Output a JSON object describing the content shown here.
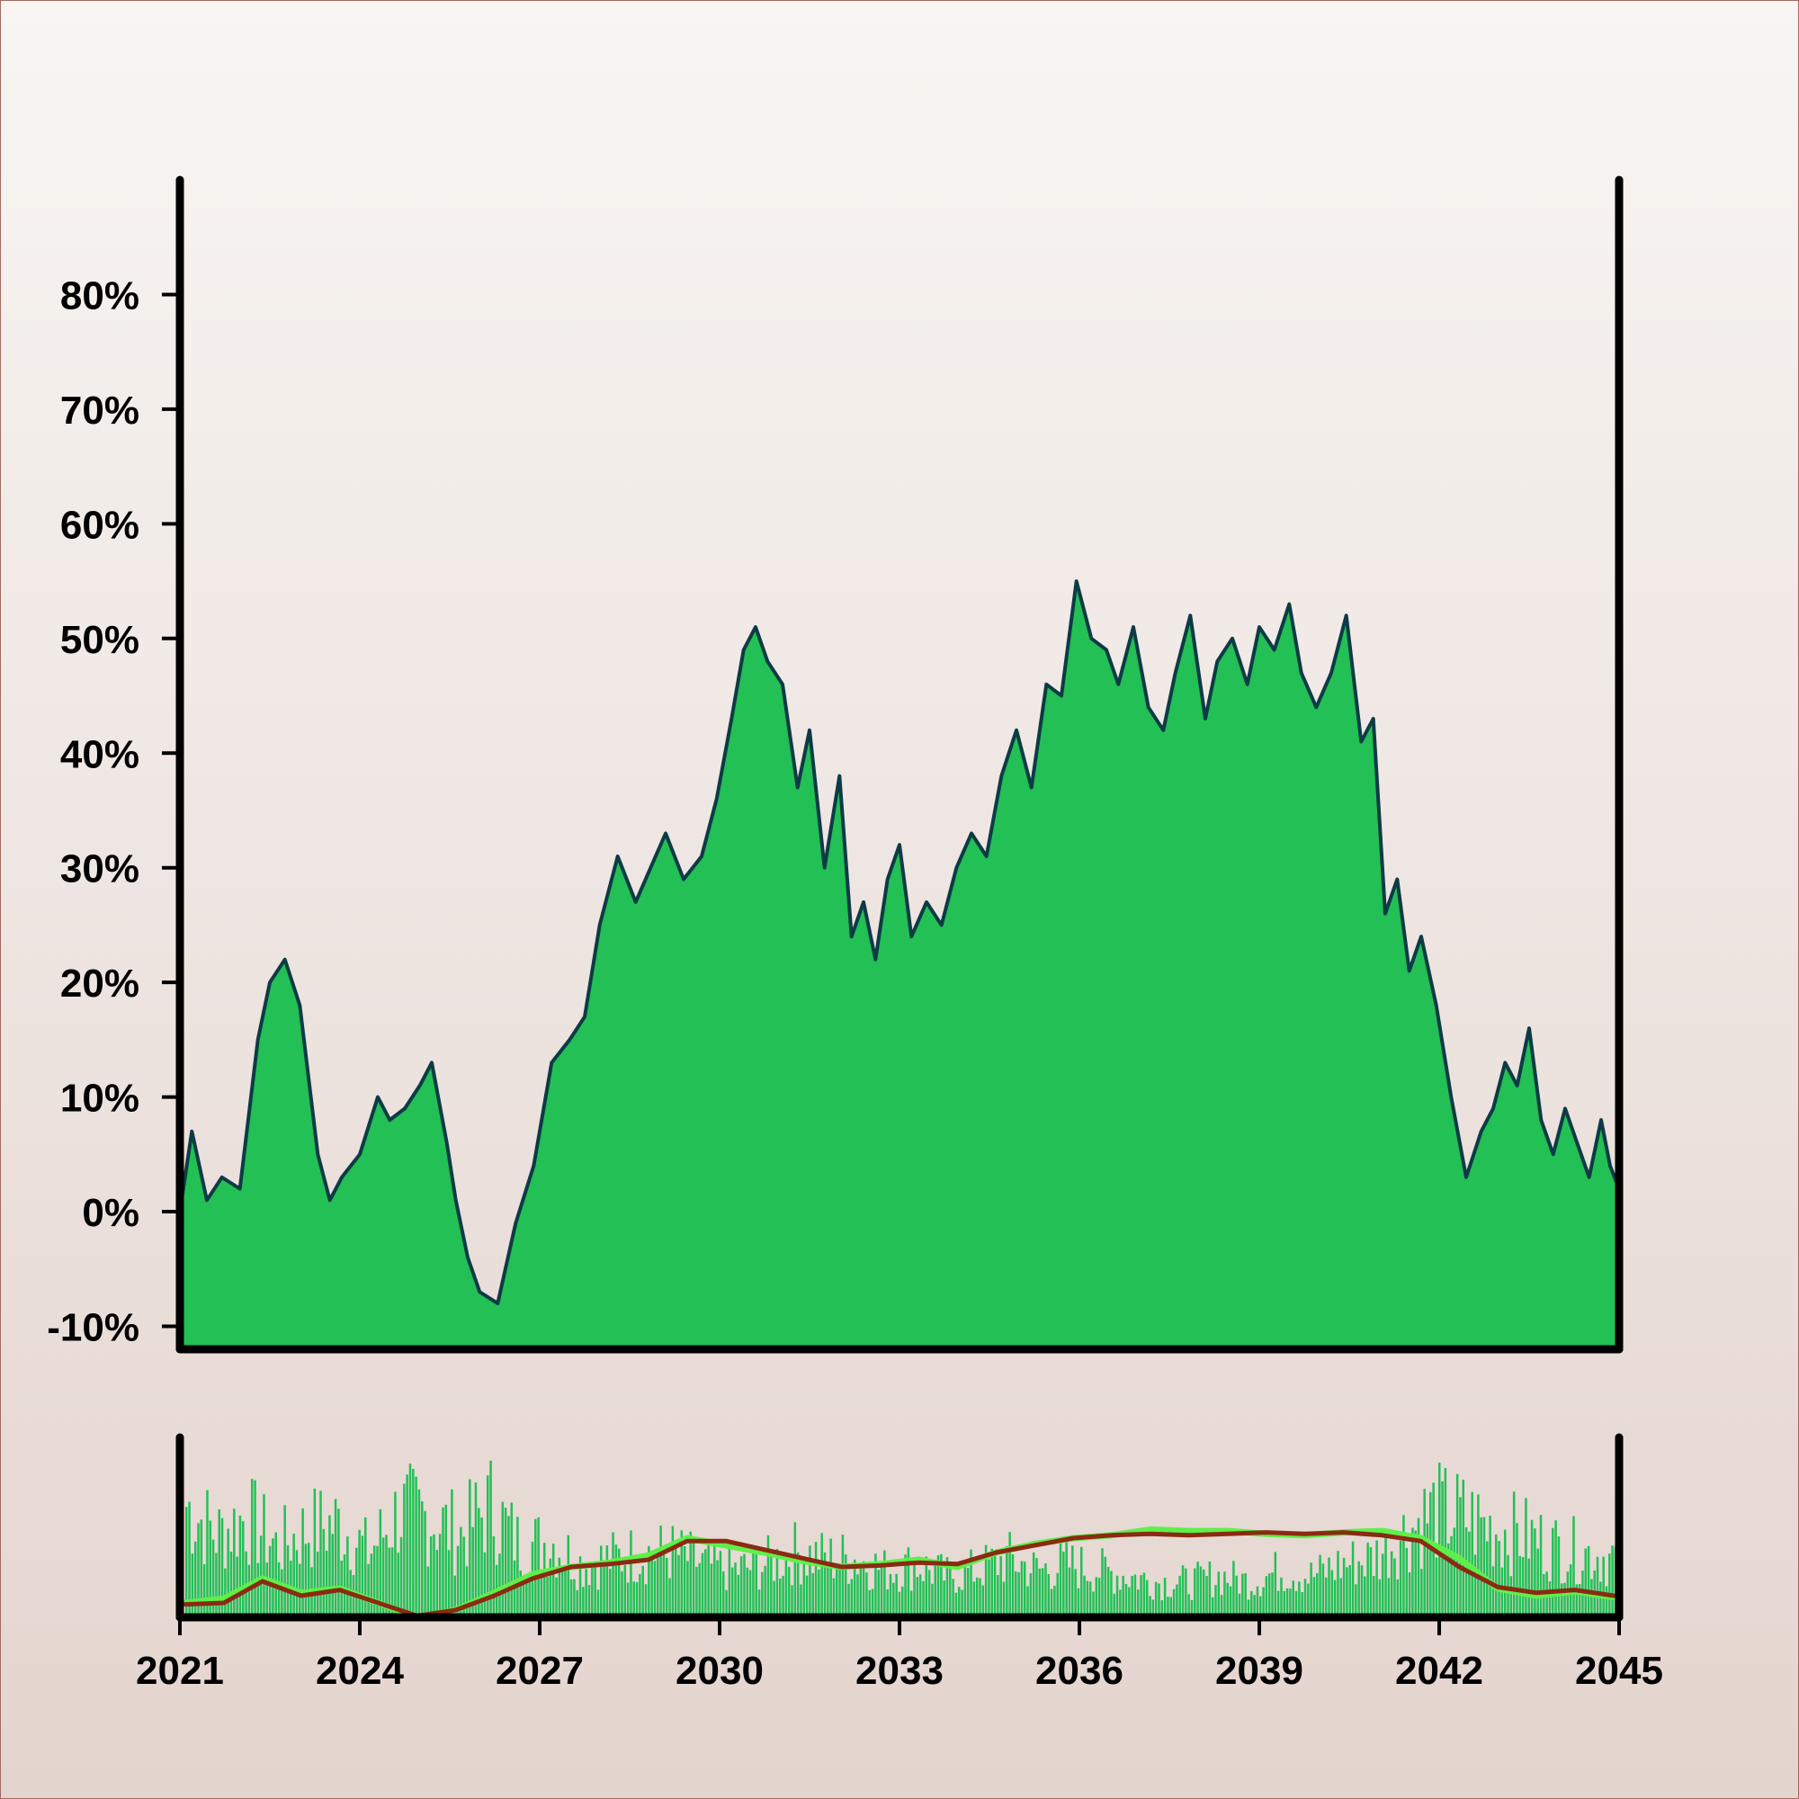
{
  "colors": {
    "area_fill": "#22c055",
    "area_line": "#0d3b45",
    "volume_bar": "#22c055",
    "ma_fast": "#5ef04a",
    "ma_slow": "#8b2a12",
    "axis": "#000000"
  },
  "chart_data": [
    {
      "type": "area",
      "title": "",
      "xlabel": "",
      "ylabel": "",
      "xlim": [
        2021,
        2045
      ],
      "ylim": [
        -12,
        90
      ],
      "y_ticks": [
        -10,
        0,
        10,
        20,
        30,
        40,
        50,
        60,
        70,
        80
      ],
      "y_tick_labels": [
        "-10%",
        "0%",
        "10%",
        "20%",
        "30%",
        "40%",
        "50%",
        "60%",
        "70%",
        "80%"
      ],
      "grid": false,
      "x": [
        2021.0,
        2021.2,
        2021.45,
        2021.7,
        2022.0,
        2022.3,
        2022.5,
        2022.75,
        2023.0,
        2023.3,
        2023.5,
        2023.7,
        2024.0,
        2024.3,
        2024.5,
        2024.75,
        2025.0,
        2025.2,
        2025.45,
        2025.6,
        2025.8,
        2026.0,
        2026.3,
        2026.6,
        2026.9,
        2027.2,
        2027.5,
        2027.75,
        2028.0,
        2028.3,
        2028.6,
        2028.85,
        2029.1,
        2029.4,
        2029.7,
        2029.95,
        2030.2,
        2030.4,
        2030.6,
        2030.8,
        2031.05,
        2031.3,
        2031.5,
        2031.75,
        2032.0,
        2032.2,
        2032.4,
        2032.6,
        2032.8,
        2033.0,
        2033.2,
        2033.45,
        2033.7,
        2033.95,
        2034.2,
        2034.45,
        2034.7,
        2034.95,
        2035.2,
        2035.45,
        2035.7,
        2035.95,
        2036.2,
        2036.45,
        2036.65,
        2036.9,
        2037.15,
        2037.4,
        2037.6,
        2037.85,
        2038.1,
        2038.3,
        2038.55,
        2038.8,
        2039.0,
        2039.25,
        2039.5,
        2039.7,
        2039.95,
        2040.2,
        2040.45,
        2040.7,
        2040.9,
        2041.1,
        2041.3,
        2041.5,
        2041.7,
        2041.95,
        2042.2,
        2042.45,
        2042.7,
        2042.9,
        2043.1,
        2043.3,
        2043.5,
        2043.7,
        2043.9,
        2044.1,
        2044.3,
        2044.5,
        2044.7,
        2044.85,
        2045.0
      ],
      "y": [
        0,
        7,
        1,
        3,
        2,
        15,
        20,
        22,
        18,
        5,
        1,
        3,
        5,
        10,
        8,
        9,
        11,
        13,
        6,
        1,
        -4,
        -7,
        -8,
        -1,
        4,
        13,
        15,
        17,
        25,
        31,
        27,
        30,
        33,
        29,
        31,
        36,
        43,
        49,
        51,
        48,
        46,
        37,
        42,
        30,
        38,
        24,
        27,
        22,
        29,
        32,
        24,
        27,
        25,
        30,
        33,
        31,
        38,
        42,
        37,
        46,
        45,
        55,
        50,
        49,
        46,
        51,
        44,
        42,
        47,
        52,
        43,
        48,
        50,
        46,
        51,
        49,
        53,
        47,
        44,
        47,
        52,
        41,
        43,
        26,
        29,
        21,
        24,
        18,
        10,
        3,
        7,
        9,
        13,
        11,
        16,
        8,
        5,
        9,
        6,
        3,
        8,
        4,
        2
      ],
      "series": [
        {
          "values_key": "y"
        }
      ]
    },
    {
      "type": "bar",
      "title": "",
      "xlim": [
        2021,
        2045
      ],
      "x_ticks": [
        2021,
        2024,
        2027,
        2030,
        2033,
        2036,
        2039,
        2042,
        2045
      ],
      "x_tick_labels": [
        "2021",
        "2024",
        "2027",
        "2030",
        "2033",
        "2036",
        "2039",
        "2042",
        "2045"
      ],
      "volume_levels": [
        0.95,
        0.7,
        0.85,
        0.6,
        0.75,
        0.8,
        0.55,
        0.9,
        0.85,
        0.7,
        0.95,
        0.6,
        0.65,
        0.45,
        0.5,
        0.55,
        0.55,
        0.45,
        0.4,
        0.45,
        0.55,
        0.5,
        0.5,
        0.4,
        0.45,
        0.35,
        0.4,
        0.5,
        0.4,
        0.45,
        0.4,
        0.35,
        0.3,
        0.3,
        0.35,
        0.3,
        0.4,
        0.35,
        0.45,
        0.5,
        0.7,
        0.9,
        0.85,
        0.75,
        0.7,
        0.6,
        0.55,
        0.5
      ],
      "ma_fast": [
        0.05,
        0.08,
        0.22,
        0.12,
        0.15,
        0.05,
        -0.05,
        0.0,
        0.12,
        0.25,
        0.3,
        0.33,
        0.38,
        0.5,
        0.45,
        0.4,
        0.34,
        0.3,
        0.32,
        0.35,
        0.3,
        0.4,
        0.46,
        0.5,
        0.52,
        0.56,
        0.55,
        0.55,
        0.53,
        0.52,
        0.54,
        0.55,
        0.5,
        0.36,
        0.15,
        0.1,
        0.13,
        0.09
      ],
      "ma_slow": [
        0.04,
        0.05,
        0.2,
        0.1,
        0.14,
        0.05,
        -0.04,
        0.0,
        0.1,
        0.22,
        0.3,
        0.32,
        0.35,
        0.48,
        0.48,
        0.42,
        0.36,
        0.3,
        0.31,
        0.33,
        0.32,
        0.4,
        0.45,
        0.5,
        0.52,
        0.53,
        0.52,
        0.53,
        0.54,
        0.53,
        0.54,
        0.52,
        0.48,
        0.3,
        0.16,
        0.12,
        0.14,
        0.1
      ]
    }
  ]
}
